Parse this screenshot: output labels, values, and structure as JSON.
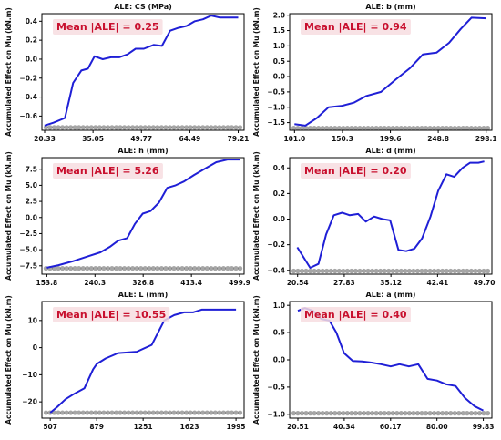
{
  "colors": {
    "line": "#1f1fd6",
    "rug": "#000000",
    "mean_text": "#c8102e",
    "mean_bg": "#f7dde0"
  },
  "chart_data": [
    {
      "type": "line",
      "title": "ALE: CS (MPa)",
      "ylabel": "Accumulated Effect on Mu (kN.m)",
      "mean_label": "Mean |ALE| = 0.25",
      "xlim": [
        19.5,
        81
      ],
      "ylim": [
        -0.75,
        0.48
      ],
      "xticks": [
        20.33,
        35.05,
        49.77,
        64.49,
        79.21
      ],
      "xtick_labels": [
        "20.33",
        "35.05",
        "49.77",
        "64.49",
        "79.21"
      ],
      "yticks": [
        -0.6,
        -0.4,
        -0.2,
        0.0,
        0.2,
        0.4
      ],
      "ytick_labels": [
        "−0.6",
        "−0.4",
        "−0.2",
        "0.0",
        "0.2",
        "0.4"
      ],
      "rug_y": -0.72,
      "x": [
        20.3,
        23.0,
        26.5,
        29.0,
        31.5,
        33.5,
        35.5,
        38.0,
        40.5,
        43.0,
        45.5,
        48.0,
        50.5,
        53.5,
        56.0,
        58.5,
        61.0,
        63.5,
        66.0,
        68.5,
        71.0,
        73.5,
        76.0,
        79.2
      ],
      "y": [
        -0.7,
        -0.67,
        -0.62,
        -0.25,
        -0.12,
        -0.1,
        0.03,
        0.0,
        0.02,
        0.02,
        0.05,
        0.11,
        0.11,
        0.15,
        0.14,
        0.3,
        0.33,
        0.35,
        0.4,
        0.42,
        0.46,
        0.44,
        0.44,
        0.44
      ]
    },
    {
      "type": "line",
      "title": "ALE: b (mm)",
      "ylabel": "Accumulated Effect on Mu (kN.m)",
      "mean_label": "Mean |ALE| = 0.94",
      "xlim": [
        96,
        304
      ],
      "ylim": [
        -1.75,
        2.05
      ],
      "xticks": [
        101.0,
        150.3,
        199.6,
        248.8,
        298.1
      ],
      "xtick_labels": [
        "101.0",
        "150.3",
        "199.6",
        "248.8",
        "298.1"
      ],
      "yticks": [
        -1.5,
        -1.0,
        -0.5,
        0.0,
        0.5,
        1.0,
        1.5,
        2.0
      ],
      "ytick_labels": [
        "−1.5",
        "−1.0",
        "−0.5",
        "0.0",
        "0.5",
        "1.0",
        "1.5",
        "2.0"
      ],
      "rug_y": -1.68,
      "x": [
        101.0,
        112.0,
        124.0,
        136.0,
        150.0,
        162.0,
        175.0,
        190.0,
        205.0,
        220.0,
        233.0,
        247.0,
        260.0,
        272.0,
        283.0,
        298.1
      ],
      "y": [
        -1.55,
        -1.6,
        -1.35,
        -1.0,
        -0.95,
        -0.85,
        -0.63,
        -0.5,
        -0.1,
        0.28,
        0.72,
        0.78,
        1.1,
        1.55,
        1.92,
        1.9
      ]
    },
    {
      "type": "line",
      "title": "ALE: h (mm)",
      "ylabel": "Accumulated Effect on Mu (kN.m)",
      "mean_label": "Mean |ALE| = 5.26",
      "xlim": [
        145,
        508
      ],
      "ylim": [
        -8.8,
        9.3
      ],
      "xticks": [
        153.8,
        240.3,
        326.8,
        413.4,
        499.9
      ],
      "xtick_labels": [
        "153.8",
        "240.3",
        "326.8",
        "413.4",
        "499.9"
      ],
      "yticks": [
        -7.5,
        -5.0,
        -2.5,
        0.0,
        2.5,
        5.0,
        7.5
      ],
      "ytick_labels": [
        "−7.5",
        "−5.0",
        "−2.5",
        "0.0",
        "2.5",
        "5.0",
        "7.5"
      ],
      "rug_y": -7.9,
      "x": [
        153.8,
        175.0,
        200.0,
        225.0,
        250.0,
        268.0,
        282.0,
        298.0,
        312.0,
        326.0,
        340.0,
        355.0,
        370.0,
        385.0,
        400.0,
        418.0,
        438.0,
        458.0,
        478.0,
        499.9
      ],
      "y": [
        -7.8,
        -7.4,
        -6.8,
        -6.1,
        -5.4,
        -4.5,
        -3.6,
        -3.2,
        -1.0,
        0.6,
        1.0,
        2.3,
        4.6,
        5.0,
        5.6,
        6.6,
        7.6,
        8.6,
        9.0,
        9.0
      ]
    },
    {
      "type": "line",
      "title": "ALE: d (mm)",
      "ylabel": "Accumulated Effect on Mu (kN.m)",
      "mean_label": "Mean |ALE| = 0.20",
      "xlim": [
        19.3,
        50.9
      ],
      "ylim": [
        -0.43,
        0.48
      ],
      "xticks": [
        20.54,
        27.83,
        35.12,
        42.41,
        49.7
      ],
      "xtick_labels": [
        "20.54",
        "27.83",
        "35.12",
        "42.41",
        "49.70"
      ],
      "yticks": [
        -0.4,
        -0.2,
        0.0,
        0.2,
        0.4
      ],
      "ytick_labels": [
        "−0.4",
        "−0.2",
        "0.0",
        "0.2",
        "0.4"
      ],
      "rug_y": -0.405,
      "x": [
        20.5,
        22.5,
        23.8,
        25.0,
        26.2,
        27.5,
        28.7,
        30.0,
        31.2,
        32.5,
        33.8,
        35.0,
        36.3,
        37.5,
        38.8,
        40.0,
        41.3,
        42.5,
        43.8,
        45.0,
        46.3,
        47.5,
        48.8,
        49.7
      ],
      "y": [
        -0.22,
        -0.38,
        -0.35,
        -0.12,
        0.03,
        0.05,
        0.03,
        0.04,
        -0.02,
        0.02,
        0.0,
        -0.01,
        -0.24,
        -0.25,
        -0.23,
        -0.15,
        0.02,
        0.22,
        0.35,
        0.33,
        0.4,
        0.44,
        0.44,
        0.45
      ]
    },
    {
      "type": "line",
      "title": "ALE: L (mm)",
      "ylabel": "Accumulated Effect on Mu (kN.m)",
      "mean_label": "Mean |ALE| = 10.55",
      "xlim": [
        440,
        2060
      ],
      "ylim": [
        -26,
        17
      ],
      "xticks": [
        507,
        879,
        1251,
        1623,
        1995
      ],
      "xtick_labels": [
        "507",
        "879",
        "1251",
        "1623",
        "1995"
      ],
      "yticks": [
        -20,
        -10,
        0,
        10
      ],
      "ytick_labels": [
        "−20",
        "−10",
        "0",
        "10"
      ],
      "rug_y": -24,
      "x": [
        507,
        560,
        630,
        700,
        780,
        850,
        880,
        950,
        1050,
        1200,
        1320,
        1420,
        1500,
        1580,
        1650,
        1720,
        1800,
        1900,
        1995
      ],
      "y": [
        -24,
        -22,
        -19,
        -17,
        -15,
        -8,
        -6,
        -4,
        -2,
        -1.5,
        1,
        10,
        12,
        13,
        13,
        14,
        14,
        14,
        14
      ]
    },
    {
      "type": "line",
      "title": "ALE: a (mm)",
      "ylabel": "Accumulated Effect on Mu (kN.m)",
      "mean_label": "Mean |ALE| = 0.40",
      "xlim": [
        17.0,
        103.5
      ],
      "ylim": [
        -1.07,
        1.07
      ],
      "xticks": [
        20.51,
        40.34,
        60.17,
        80.0,
        99.83
      ],
      "xtick_labels": [
        "20.51",
        "40.34",
        "60.17",
        "80.00",
        "99.83"
      ],
      "yticks": [
        -1.0,
        -0.5,
        0.0,
        0.5,
        1.0
      ],
      "ytick_labels": [
        "−1.0",
        "−0.5",
        "0.0",
        "0.5",
        "1.0"
      ],
      "rug_y": -0.98,
      "x": [
        20.5,
        23.5,
        27.0,
        30.5,
        34.0,
        37.0,
        40.3,
        44.0,
        48.0,
        52.0,
        56.0,
        60.2,
        64.0,
        68.0,
        72.0,
        76.0,
        80.0,
        84.0,
        88.0,
        92.0,
        96.0,
        99.8
      ],
      "y": [
        0.9,
        0.95,
        0.9,
        0.75,
        0.72,
        0.5,
        0.12,
        -0.02,
        -0.03,
        -0.05,
        -0.08,
        -0.12,
        -0.08,
        -0.12,
        -0.08,
        -0.35,
        -0.38,
        -0.45,
        -0.48,
        -0.7,
        -0.85,
        -0.93
      ]
    }
  ]
}
